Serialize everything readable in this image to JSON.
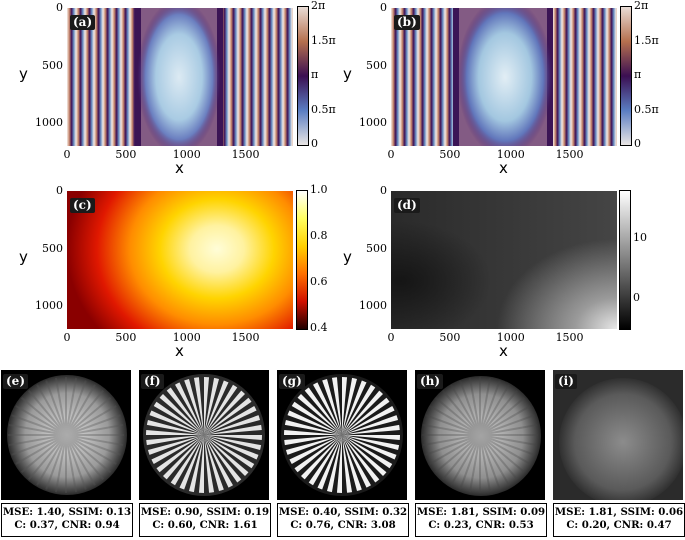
{
  "figure": {
    "panels": [
      {
        "tag": "(a)",
        "xlabel": "x",
        "ylabel": "y"
      },
      {
        "tag": "(b)",
        "xlabel": "x",
        "ylabel": "y"
      },
      {
        "tag": "(c)",
        "xlabel": "x",
        "ylabel": "y"
      },
      {
        "tag": "(d)",
        "xlabel": "x",
        "ylabel": "y"
      }
    ],
    "x_ticks": [
      "0",
      "500",
      "1000",
      "1500"
    ],
    "y_ticks": [
      "0",
      "500",
      "1000"
    ],
    "phase_cbar_ticks": [
      "2π",
      "1.5π",
      "π",
      "0.5π",
      "0"
    ],
    "amp_cbar_ticks": [
      "1.0",
      "0.8",
      "0.6",
      "0.4"
    ],
    "gray_cbar_ticks": [
      "10",
      "0"
    ],
    "recon": [
      {
        "tag": "(e)",
        "line1": "MSE: 1.40, SSIM: 0.13",
        "line2": "C: 0.37, CNR: 0.94"
      },
      {
        "tag": "(f)",
        "line1": "MSE: 0.90, SSIM: 0.19",
        "line2": "C: 0.60, CNR: 1.61"
      },
      {
        "tag": "(g)",
        "line1": "MSE: 0.40, SSIM: 0.32",
        "line2": "C: 0.76, CNR: 3.08"
      },
      {
        "tag": "(h)",
        "line1": "MSE: 1.81, SSIM: 0.09",
        "line2": "C: 0.23, CNR: 0.53"
      },
      {
        "tag": "(i)",
        "line1": "MSE: 1.81, SSIM: 0.06",
        "line2": "C: 0.20, CNR: 0.47"
      }
    ]
  },
  "chart_data": [
    {
      "type": "heatmap",
      "panel": "(a)",
      "xlabel": "x",
      "ylabel": "y",
      "xlim": [
        0,
        1920
      ],
      "ylim": [
        1200,
        0
      ],
      "colorbar": {
        "min": 0,
        "max": 6.283,
        "ticks": [
          "0",
          "0.5π",
          "π",
          "1.5π",
          "2π"
        ]
      }
    },
    {
      "type": "heatmap",
      "panel": "(b)",
      "xlabel": "x",
      "ylabel": "y",
      "xlim": [
        0,
        1920
      ],
      "ylim": [
        1200,
        0
      ],
      "colorbar": {
        "min": 0,
        "max": 6.283,
        "ticks": [
          "0",
          "0.5π",
          "π",
          "1.5π",
          "2π"
        ]
      }
    },
    {
      "type": "heatmap",
      "panel": "(c)",
      "xlabel": "x",
      "ylabel": "y",
      "xlim": [
        0,
        1920
      ],
      "ylim": [
        1200,
        0
      ],
      "colorbar": {
        "min": 0.4,
        "max": 1.0,
        "ticks": [
          0.4,
          0.6,
          0.8,
          1.0
        ]
      }
    },
    {
      "type": "heatmap",
      "panel": "(d)",
      "xlabel": "x",
      "ylabel": "y",
      "xlim": [
        0,
        1920
      ],
      "ylim": [
        1200,
        0
      ],
      "colorbar": {
        "min": -5,
        "max": 18,
        "ticks": [
          0,
          10
        ]
      }
    }
  ],
  "colors": {
    "phase_low": "#f2ece6",
    "phase_mid": "#3a0f52",
    "phase_high": "#e8d2c8",
    "amp_dark": "#1a0000",
    "amp_red": "#e11a00",
    "amp_yellow": "#ffe400",
    "amp_white": "#ffffe6"
  }
}
